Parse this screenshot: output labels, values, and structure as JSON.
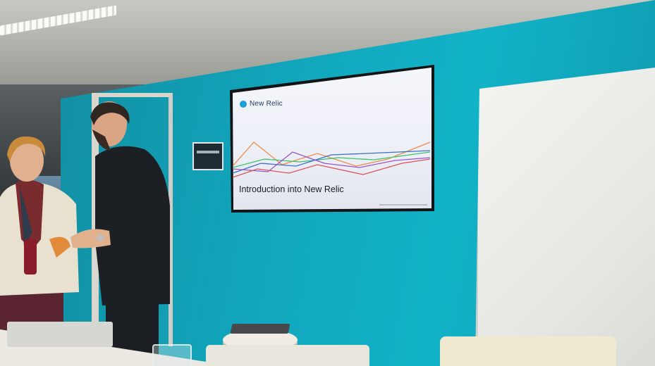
{
  "slide": {
    "logo_text": "New Relic",
    "title": "Introduction into New Relic"
  },
  "colors": {
    "wall": "#12b3c8",
    "slide_background": "#eef0f7",
    "line_orange": "#f08a4b",
    "line_green": "#3cc36a",
    "line_blue": "#3d6fc7",
    "line_purple": "#9b55c9",
    "line_red": "#e0505a"
  },
  "icons": [
    "new-relic-logo-icon"
  ]
}
